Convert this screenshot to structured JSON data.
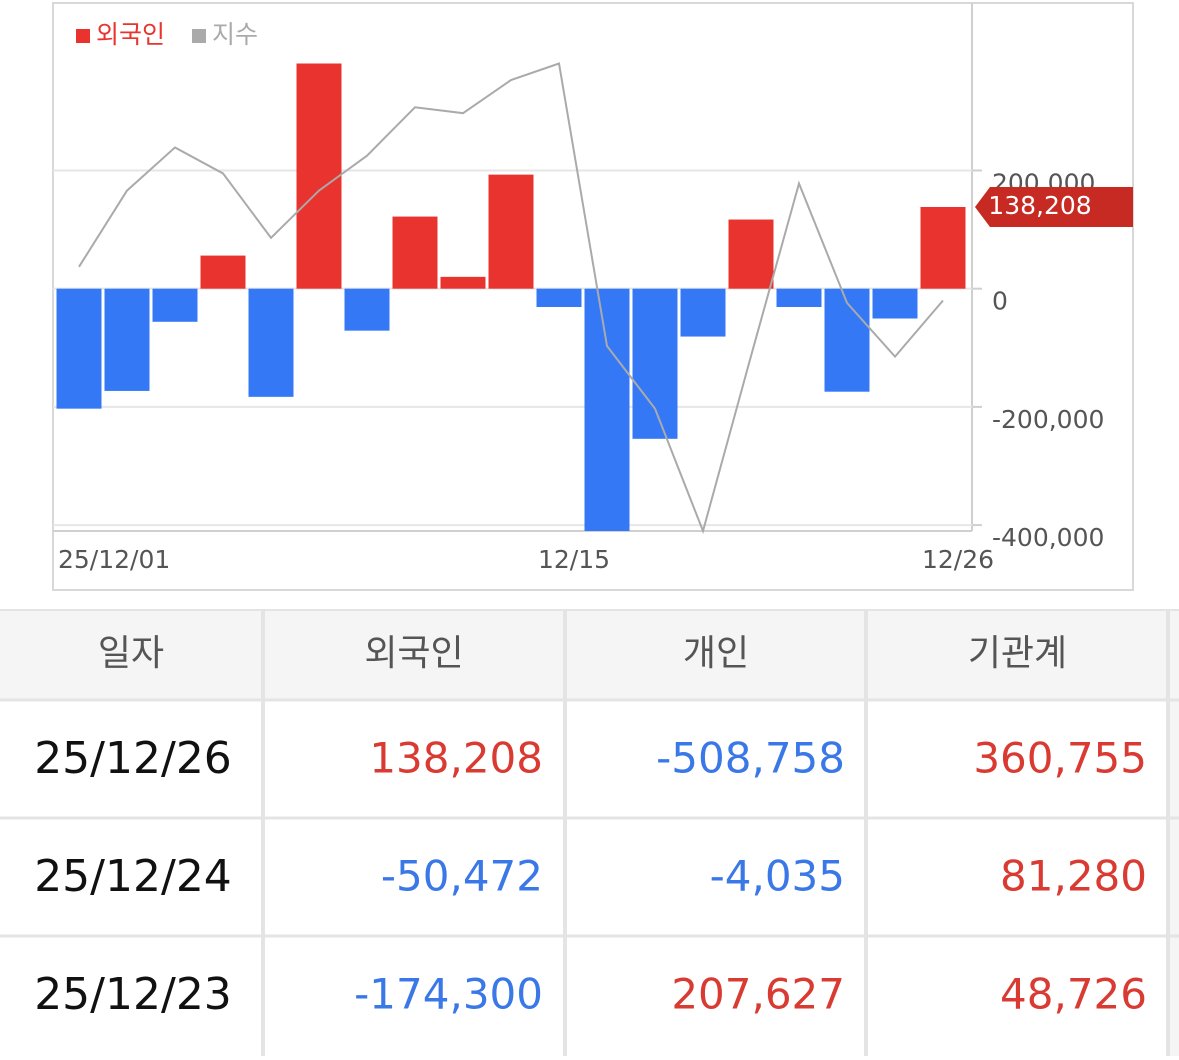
{
  "chart_data": {
    "type": "bar",
    "categories": [
      "25/12/01",
      null,
      null,
      null,
      null,
      null,
      null,
      null,
      null,
      null,
      "12/15",
      null,
      null,
      null,
      null,
      null,
      null,
      null,
      "12/26"
    ],
    "series": [
      {
        "name": "외국인",
        "color": "#e8332e",
        "negative_color": "#3478f6",
        "values": [
          -203000,
          -173000,
          -56000,
          56000,
          -183000,
          381000,
          -71000,
          122000,
          20000,
          193000,
          -31000,
          -410000,
          -254000,
          -81000,
          117000,
          -31000,
          -174300,
          -50472,
          138208
        ],
        "value_labels": [
          null,
          null,
          null,
          null,
          null,
          null,
          null,
          null,
          null,
          null,
          null,
          null,
          null,
          null,
          null,
          null,
          null,
          null,
          "138,208"
        ]
      },
      {
        "name": "지수",
        "color": "#aaaaaa",
        "type": "line",
        "values": [
          37000,
          166000,
          239000,
          195000,
          86000,
          166000,
          225000,
          307000,
          297000,
          353000,
          381000,
          -97000,
          -203000,
          -410000,
          -114000,
          178000,
          -24000,
          -115000,
          -20000
        ]
      }
    ],
    "ylim": [
      -410000,
      480000
    ],
    "yticks": [
      {
        "value": -400000,
        "label": "-400,000"
      },
      {
        "value": -200000,
        "label": "-200,000"
      },
      0,
      {
        "value": 200000,
        "label": "200,000"
      }
    ],
    "grid": true,
    "legend": "top-left"
  },
  "table": {
    "header": [
      "일자",
      "외국인",
      "개인",
      "기관계"
    ],
    "rows": [
      [
        "25/12/26",
        "138,208",
        "-508,758",
        "360,755"
      ],
      [
        "25/12/24",
        "-50,472",
        "-4,035",
        "81,280"
      ],
      [
        "25/12/23",
        "-174,300",
        "207,627",
        "48,726"
      ]
    ]
  }
}
